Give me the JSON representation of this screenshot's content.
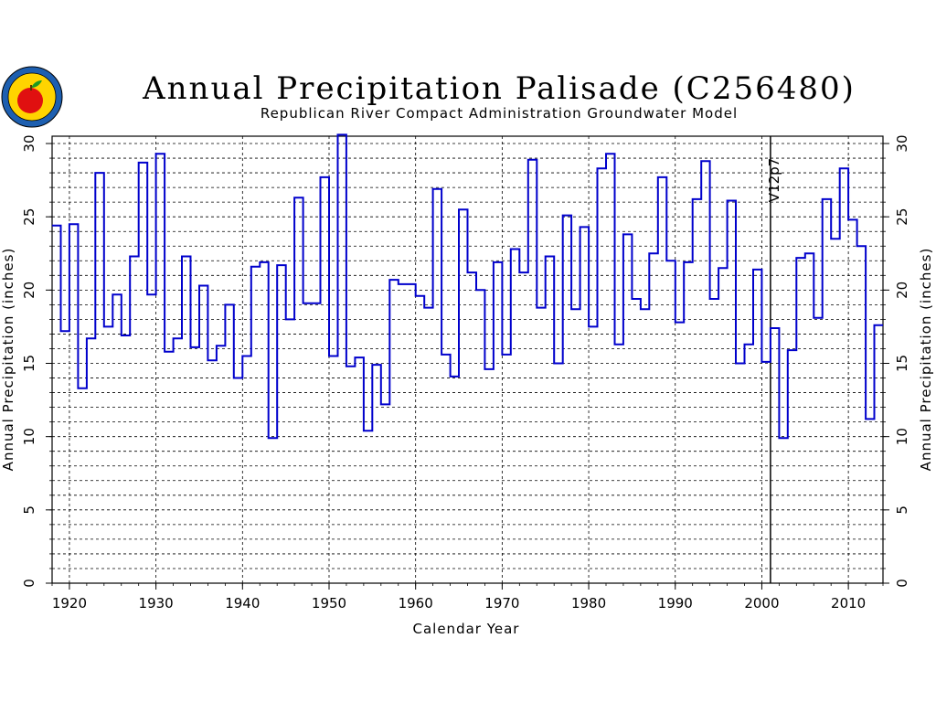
{
  "chart_data": {
    "type": "line",
    "style": "step",
    "title": "Annual Precipitation Palisade (C256480)",
    "subtitle": "Republican River Compact Administration Groundwater Model",
    "xlabel": "Calendar Year",
    "ylabel": "Annual Precipitation (inches)",
    "ylabel_right": "Annual Precipitation (inches)",
    "xlim": [
      1918,
      2014
    ],
    "ylim": [
      0,
      30.5
    ],
    "x_ticks": [
      1920,
      1930,
      1940,
      1950,
      1960,
      1970,
      1980,
      1990,
      2000,
      2010
    ],
    "y_ticks": [
      0,
      5,
      10,
      15,
      20,
      25,
      30
    ],
    "grid": true,
    "line_color": "#0000cc",
    "annotation": {
      "x": 2001,
      "label": "V12p7"
    },
    "x": [
      1918,
      1919,
      1920,
      1921,
      1922,
      1923,
      1924,
      1925,
      1926,
      1927,
      1928,
      1929,
      1930,
      1931,
      1932,
      1933,
      1934,
      1935,
      1936,
      1937,
      1938,
      1939,
      1940,
      1941,
      1942,
      1943,
      1944,
      1945,
      1946,
      1947,
      1948,
      1949,
      1950,
      1951,
      1952,
      1953,
      1954,
      1955,
      1956,
      1957,
      1958,
      1959,
      1960,
      1961,
      1962,
      1963,
      1964,
      1965,
      1966,
      1967,
      1968,
      1969,
      1970,
      1971,
      1972,
      1973,
      1974,
      1975,
      1976,
      1977,
      1978,
      1979,
      1980,
      1981,
      1982,
      1983,
      1984,
      1985,
      1986,
      1987,
      1988,
      1989,
      1990,
      1991,
      1992,
      1993,
      1994,
      1995,
      1996,
      1997,
      1998,
      1999,
      2000,
      2001,
      2002,
      2003,
      2004,
      2005,
      2006,
      2007,
      2008,
      2009,
      2010,
      2011,
      2012,
      2013
    ],
    "values": [
      24.4,
      17.2,
      24.5,
      13.3,
      16.7,
      28.0,
      17.5,
      19.7,
      16.9,
      22.3,
      28.7,
      19.7,
      29.3,
      15.8,
      16.7,
      22.3,
      16.1,
      20.3,
      15.2,
      16.2,
      19.0,
      14.0,
      15.5,
      21.6,
      21.9,
      9.9,
      21.7,
      18.0,
      26.3,
      19.1,
      19.1,
      27.7,
      15.5,
      30.6,
      14.8,
      15.4,
      10.4,
      14.9,
      12.2,
      20.7,
      20.4,
      20.4,
      19.6,
      18.8,
      26.9,
      15.6,
      14.1,
      25.5,
      21.2,
      20.0,
      14.6,
      21.9,
      15.6,
      22.8,
      21.2,
      28.9,
      18.8,
      22.3,
      15.0,
      25.1,
      18.7,
      24.3,
      17.5,
      28.3,
      29.3,
      16.3,
      23.8,
      19.4,
      18.7,
      22.5,
      27.7,
      22.0,
      17.8,
      21.9,
      26.2,
      28.8,
      19.4,
      21.5,
      26.1,
      15.0,
      16.3,
      21.4,
      15.1,
      17.4,
      9.9,
      15.9,
      22.2,
      22.5,
      18.1,
      26.2,
      23.5,
      28.3,
      24.8,
      23.0,
      11.2,
      17.6
    ]
  },
  "logo": {
    "label": "RRCA logo"
  }
}
